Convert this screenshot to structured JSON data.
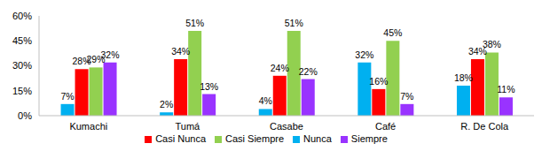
{
  "chart_data": {
    "type": "bar",
    "categories": [
      "Kumachi",
      "Tumá",
      "Casabe",
      "Café",
      "R. De Cola"
    ],
    "series": [
      {
        "name": "Nunca",
        "color": "#00B0F0",
        "values": [
          7,
          2,
          4,
          32,
          18
        ],
        "value_labels": [
          "7%",
          "2%",
          "4%",
          "32%",
          "18%"
        ]
      },
      {
        "name": "Casi Nunca",
        "color": "#FF0000",
        "values": [
          28,
          34,
          24,
          16,
          34
        ],
        "value_labels": [
          "28%",
          "34%",
          "24%",
          "16%",
          "34%"
        ]
      },
      {
        "name": "Casi Siempre",
        "color": "#92D050",
        "values": [
          29,
          51,
          51,
          45,
          38
        ],
        "value_labels": [
          "29%",
          "51%",
          "51%",
          "45%",
          "38%"
        ]
      },
      {
        "name": "Siempre",
        "color": "#9933FF",
        "values": [
          32,
          13,
          22,
          7,
          11
        ],
        "value_labels": [
          "32%",
          "13%",
          "22%",
          "7%",
          "11%"
        ]
      }
    ],
    "ylim": [
      0,
      60
    ],
    "yticks": [
      {
        "value": 0,
        "label": "0%"
      },
      {
        "value": 15,
        "label": "15%"
      },
      {
        "value": 30,
        "label": "30%"
      },
      {
        "value": 45,
        "label": "45%"
      },
      {
        "value": 60,
        "label": "60%"
      }
    ],
    "grid": false,
    "legend": "bottom",
    "data_labels": true
  }
}
